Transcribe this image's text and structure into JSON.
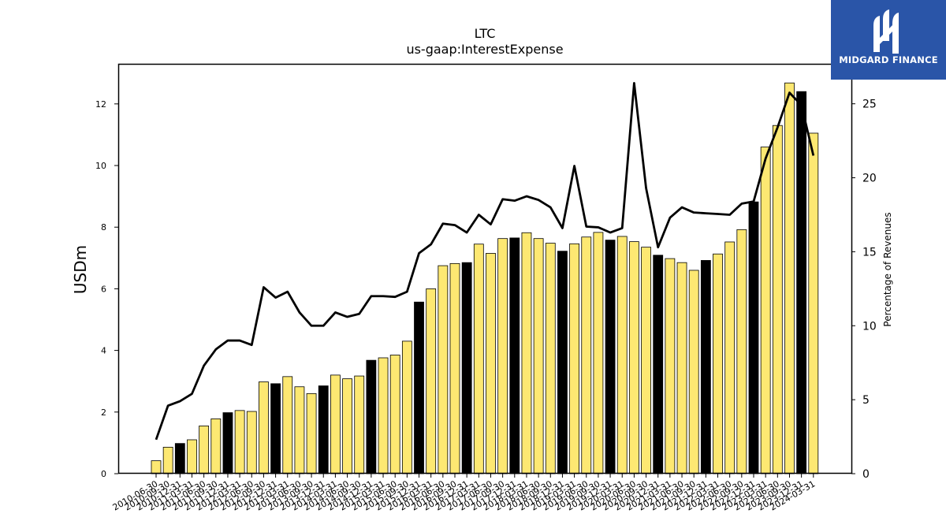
{
  "chart_data": {
    "type": "bar",
    "title": "LTC",
    "subtitle": "us-gaap:InterestExpense",
    "ylabel": "USDm",
    "y2label": "Percentage of Revenues",
    "ylim": [
      0,
      13.3
    ],
    "y2lim": [
      0,
      27.7
    ],
    "yticks": [
      0,
      2,
      4,
      6,
      8,
      10,
      12
    ],
    "y2ticks": [
      0,
      5,
      10,
      15,
      20,
      25
    ],
    "grid": false,
    "categories": [
      "2010-06-30",
      "2010-09-30",
      "2010-12-31",
      "2011-03-31",
      "2011-06-30",
      "2011-09-30",
      "2011-12-31",
      "2012-03-31",
      "2012-06-30",
      "2012-09-30",
      "2012-12-31",
      "2013-03-31",
      "2013-06-30",
      "2013-09-30",
      "2013-12-31",
      "2014-03-31",
      "2014-06-30",
      "2014-09-30",
      "2014-12-31",
      "2015-03-31",
      "2015-06-30",
      "2015-09-30",
      "2015-12-31",
      "2016-03-31",
      "2016-06-30",
      "2016-09-30",
      "2016-12-31",
      "2017-03-31",
      "2017-06-30",
      "2017-09-30",
      "2017-12-31",
      "2018-03-31",
      "2018-06-30",
      "2018-09-30",
      "2018-12-31",
      "2019-03-31",
      "2019-06-30",
      "2019-09-30",
      "2019-12-31",
      "2020-03-31",
      "2020-06-30",
      "2020-09-30",
      "2020-12-31",
      "2021-03-31",
      "2021-06-30",
      "2021-09-30",
      "2021-12-31",
      "2022-03-31",
      "2022-06-30",
      "2022-09-30",
      "2022-12-31",
      "2023-03-31",
      "2023-06-30",
      "2023-09-30",
      "2023-12-31",
      "2024-03-31"
    ],
    "series": [
      {
        "type": "bar",
        "axis": "left",
        "values": [
          0.42,
          0.86,
          0.98,
          1.1,
          1.55,
          1.78,
          1.98,
          2.05,
          2.02,
          2.98,
          2.92,
          3.15,
          2.82,
          2.6,
          2.85,
          3.2,
          3.08,
          3.17,
          3.68,
          3.76,
          3.85,
          4.3,
          5.57,
          6.0,
          6.75,
          6.82,
          6.85,
          7.45,
          7.15,
          7.63,
          7.65,
          7.82,
          7.63,
          7.48,
          7.22,
          7.46,
          7.68,
          7.83,
          7.58,
          7.7,
          7.53,
          7.35,
          7.09,
          6.98,
          6.85,
          6.6,
          6.92,
          7.13,
          7.52,
          7.92,
          8.82,
          10.6,
          11.3,
          12.68,
          12.4,
          11.05
        ],
        "highlight": [
          false,
          false,
          true,
          false,
          false,
          false,
          true,
          false,
          false,
          false,
          true,
          false,
          false,
          false,
          true,
          false,
          false,
          false,
          true,
          false,
          false,
          false,
          true,
          false,
          false,
          false,
          true,
          false,
          false,
          false,
          true,
          false,
          false,
          false,
          true,
          false,
          false,
          false,
          true,
          false,
          false,
          false,
          true,
          false,
          false,
          false,
          true,
          false,
          false,
          false,
          true,
          false,
          false,
          false,
          true,
          false
        ]
      },
      {
        "type": "line",
        "axis": "right",
        "values": [
          2.3,
          4.6,
          4.9,
          5.4,
          7.3,
          8.4,
          9.0,
          9.0,
          8.7,
          12.6,
          11.9,
          12.3,
          10.9,
          10.0,
          10.0,
          10.9,
          10.6,
          10.8,
          12.0,
          12.0,
          11.95,
          12.3,
          14.9,
          15.5,
          16.9,
          16.8,
          16.3,
          17.5,
          16.85,
          18.55,
          18.45,
          18.75,
          18.5,
          18.0,
          16.6,
          20.8,
          16.7,
          16.65,
          16.3,
          16.6,
          26.4,
          19.3,
          15.3,
          17.3,
          18.0,
          17.65,
          17.6,
          17.55,
          17.5,
          18.25,
          18.4,
          21.3,
          23.4,
          25.75,
          24.9,
          21.5
        ]
      }
    ],
    "colors": {
      "bar_default": "#fde872",
      "bar_highlight": "#000000",
      "bar_edge": "#000000",
      "line": "#000000"
    }
  },
  "logo": {
    "text": "MIDGARD FINANCE",
    "bg": "#2a55a8"
  }
}
